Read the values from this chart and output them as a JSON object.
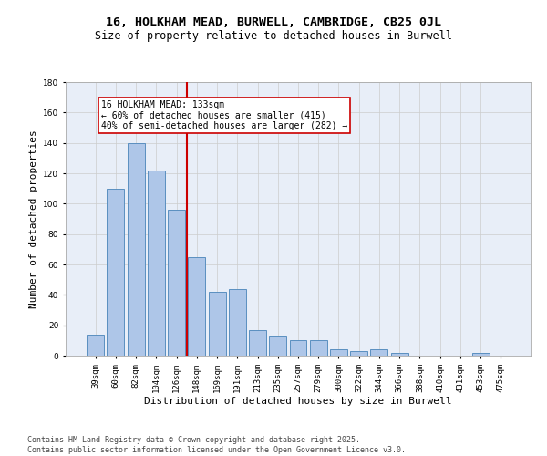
{
  "title1": "16, HOLKHAM MEAD, BURWELL, CAMBRIDGE, CB25 0JL",
  "title2": "Size of property relative to detached houses in Burwell",
  "xlabel": "Distribution of detached houses by size in Burwell",
  "ylabel": "Number of detached properties",
  "categories": [
    "39sqm",
    "60sqm",
    "82sqm",
    "104sqm",
    "126sqm",
    "148sqm",
    "169sqm",
    "191sqm",
    "213sqm",
    "235sqm",
    "257sqm",
    "279sqm",
    "300sqm",
    "322sqm",
    "344sqm",
    "366sqm",
    "388sqm",
    "410sqm",
    "431sqm",
    "453sqm",
    "475sqm"
  ],
  "values": [
    14,
    110,
    140,
    122,
    96,
    65,
    42,
    44,
    17,
    13,
    10,
    10,
    4,
    3,
    4,
    2,
    0,
    0,
    0,
    2,
    0
  ],
  "bar_color": "#aec6e8",
  "bar_edge_color": "#5a8fc0",
  "vline_x": 4.5,
  "vline_color": "#cc0000",
  "annotation_text": "16 HOLKHAM MEAD: 133sqm\n← 60% of detached houses are smaller (415)\n40% of semi-detached houses are larger (282) →",
  "annotation_box_color": "#ffffff",
  "annotation_box_edge": "#cc0000",
  "ylim": [
    0,
    180
  ],
  "yticks": [
    0,
    20,
    40,
    60,
    80,
    100,
    120,
    140,
    160,
    180
  ],
  "grid_color": "#cccccc",
  "bg_color": "#e8eef8",
  "footer": "Contains HM Land Registry data © Crown copyright and database right 2025.\nContains public sector information licensed under the Open Government Licence v3.0.",
  "title1_fontsize": 9.5,
  "title2_fontsize": 8.5,
  "axis_label_fontsize": 8,
  "tick_fontsize": 6.5,
  "footer_fontsize": 6,
  "annot_fontsize": 7
}
